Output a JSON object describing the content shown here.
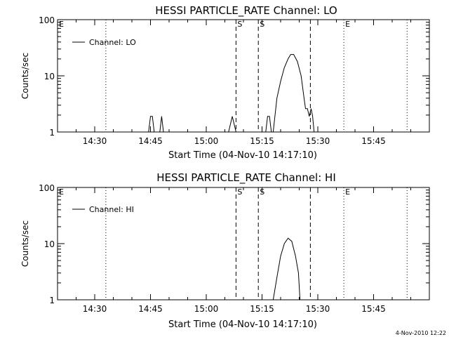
{
  "footer_stamp": "4-Nov-2010 12:22",
  "colors": {
    "line": "#000000",
    "background": "#ffffff"
  },
  "chart_data": [
    {
      "type": "line",
      "title": "HESSI PARTICLE_RATE Channel: LO",
      "xlabel": "Start Time (04-Nov-10 14:17:10)",
      "ylabel": "Counts/sec",
      "yscale": "log",
      "ylim": [
        1,
        100
      ],
      "xlim": [
        "14:20",
        "16:00"
      ],
      "xticks": [
        "14:30",
        "14:45",
        "15:00",
        "15:15",
        "15:30",
        "15:45"
      ],
      "yticks": [
        "1",
        "10",
        "100"
      ],
      "legend": {
        "label": "Channel: LO",
        "placement": "top-left"
      },
      "markers": [
        {
          "time": "14:20",
          "label": "E",
          "style": "dotted"
        },
        {
          "time": "14:33",
          "label": "",
          "style": "dotted"
        },
        {
          "time": "15:08",
          "label": "S",
          "style": "dashed"
        },
        {
          "time": "15:14",
          "label": "S",
          "style": "dashed"
        },
        {
          "time": "15:28",
          "label": "",
          "style": "dashed"
        },
        {
          "time": "15:37",
          "label": "E",
          "style": "dotted"
        },
        {
          "time": "15:54",
          "label": "",
          "style": "dotted"
        }
      ],
      "series": [
        {
          "name": "Channel: LO",
          "points": [
            [
              "14:20",
              1
            ],
            [
              "14:44.5",
              1
            ],
            [
              "14:45",
              1.9
            ],
            [
              "14:45.5",
              1.9
            ],
            [
              "14:46",
              1
            ],
            [
              "14:47.5",
              1
            ],
            [
              "14:48",
              1.9
            ],
            [
              "14:48.5",
              1
            ],
            [
              "15:06",
              1
            ],
            [
              "15:07",
              1.9
            ],
            [
              "15:08",
              1
            ],
            [
              "15:16",
              1
            ],
            [
              "15:16.5",
              1.9
            ],
            [
              "15:17",
              1.9
            ],
            [
              "15:17.5",
              1
            ],
            [
              "15:18",
              1
            ],
            [
              "15:19",
              4
            ],
            [
              "15:20",
              8
            ],
            [
              "15:21",
              14
            ],
            [
              "15:22",
              20
            ],
            [
              "15:22.7",
              24
            ],
            [
              "15:23.5",
              24
            ],
            [
              "15:24.5",
              18
            ],
            [
              "15:25.5",
              10
            ],
            [
              "15:26.3",
              4
            ],
            [
              "15:26.7",
              2.6
            ],
            [
              "15:27.2",
              2.6
            ],
            [
              "15:27.7",
              1.9
            ],
            [
              "15:28.2",
              2.6
            ],
            [
              "15:28.6",
              1.9
            ],
            [
              "15:29",
              1
            ],
            [
              "16:00",
              1
            ]
          ]
        }
      ]
    },
    {
      "type": "line",
      "title": "HESSI PARTICLE_RATE Channel: HI",
      "xlabel": "Start Time (04-Nov-10 14:17:10)",
      "ylabel": "Counts/sec",
      "yscale": "log",
      "ylim": [
        1,
        100
      ],
      "xlim": [
        "14:20",
        "16:00"
      ],
      "xticks": [
        "14:30",
        "14:45",
        "15:00",
        "15:15",
        "15:30",
        "15:45"
      ],
      "yticks": [
        "1",
        "10",
        "100"
      ],
      "legend": {
        "label": "Channel: HI",
        "placement": "top-left"
      },
      "markers": [
        {
          "time": "14:20",
          "label": "E",
          "style": "dotted"
        },
        {
          "time": "14:33",
          "label": "",
          "style": "dotted"
        },
        {
          "time": "15:08",
          "label": "S",
          "style": "dashed"
        },
        {
          "time": "15:14",
          "label": "S",
          "style": "dashed"
        },
        {
          "time": "15:28",
          "label": "",
          "style": "dashed"
        },
        {
          "time": "15:37",
          "label": "E",
          "style": "dotted"
        },
        {
          "time": "15:54",
          "label": "",
          "style": "dotted"
        }
      ],
      "series": [
        {
          "name": "Channel: HI",
          "points": [
            [
              "15:18",
              1
            ],
            [
              "15:19",
              2.5
            ],
            [
              "15:20",
              6
            ],
            [
              "15:21",
              10
            ],
            [
              "15:22",
              12.5
            ],
            [
              "15:23",
              11
            ],
            [
              "15:24",
              6
            ],
            [
              "15:24.8",
              3
            ],
            [
              "15:25.2",
              1
            ]
          ]
        }
      ]
    }
  ]
}
